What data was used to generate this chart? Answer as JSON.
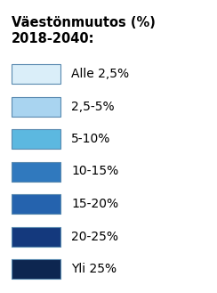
{
  "title_line1": "Väestönmuutos (%)",
  "title_line2": "2018-2040:",
  "title_fontsize": 10.5,
  "title_fontweight": "bold",
  "labels": [
    "Alle 2,5%",
    "2,5-5%",
    "5-10%",
    "10-15%",
    "15-20%",
    "20-25%",
    "Yli 25%"
  ],
  "colors": [
    "#daeef9",
    "#a9d4f0",
    "#5cb8e0",
    "#3079be",
    "#2563ae",
    "#14397d",
    "#0d2650"
  ],
  "box_edgecolor": "#5a8ab0",
  "label_fontsize": 10,
  "background_color": "#ffffff",
  "fig_width": 2.44,
  "fig_height": 3.29,
  "dpi": 100
}
